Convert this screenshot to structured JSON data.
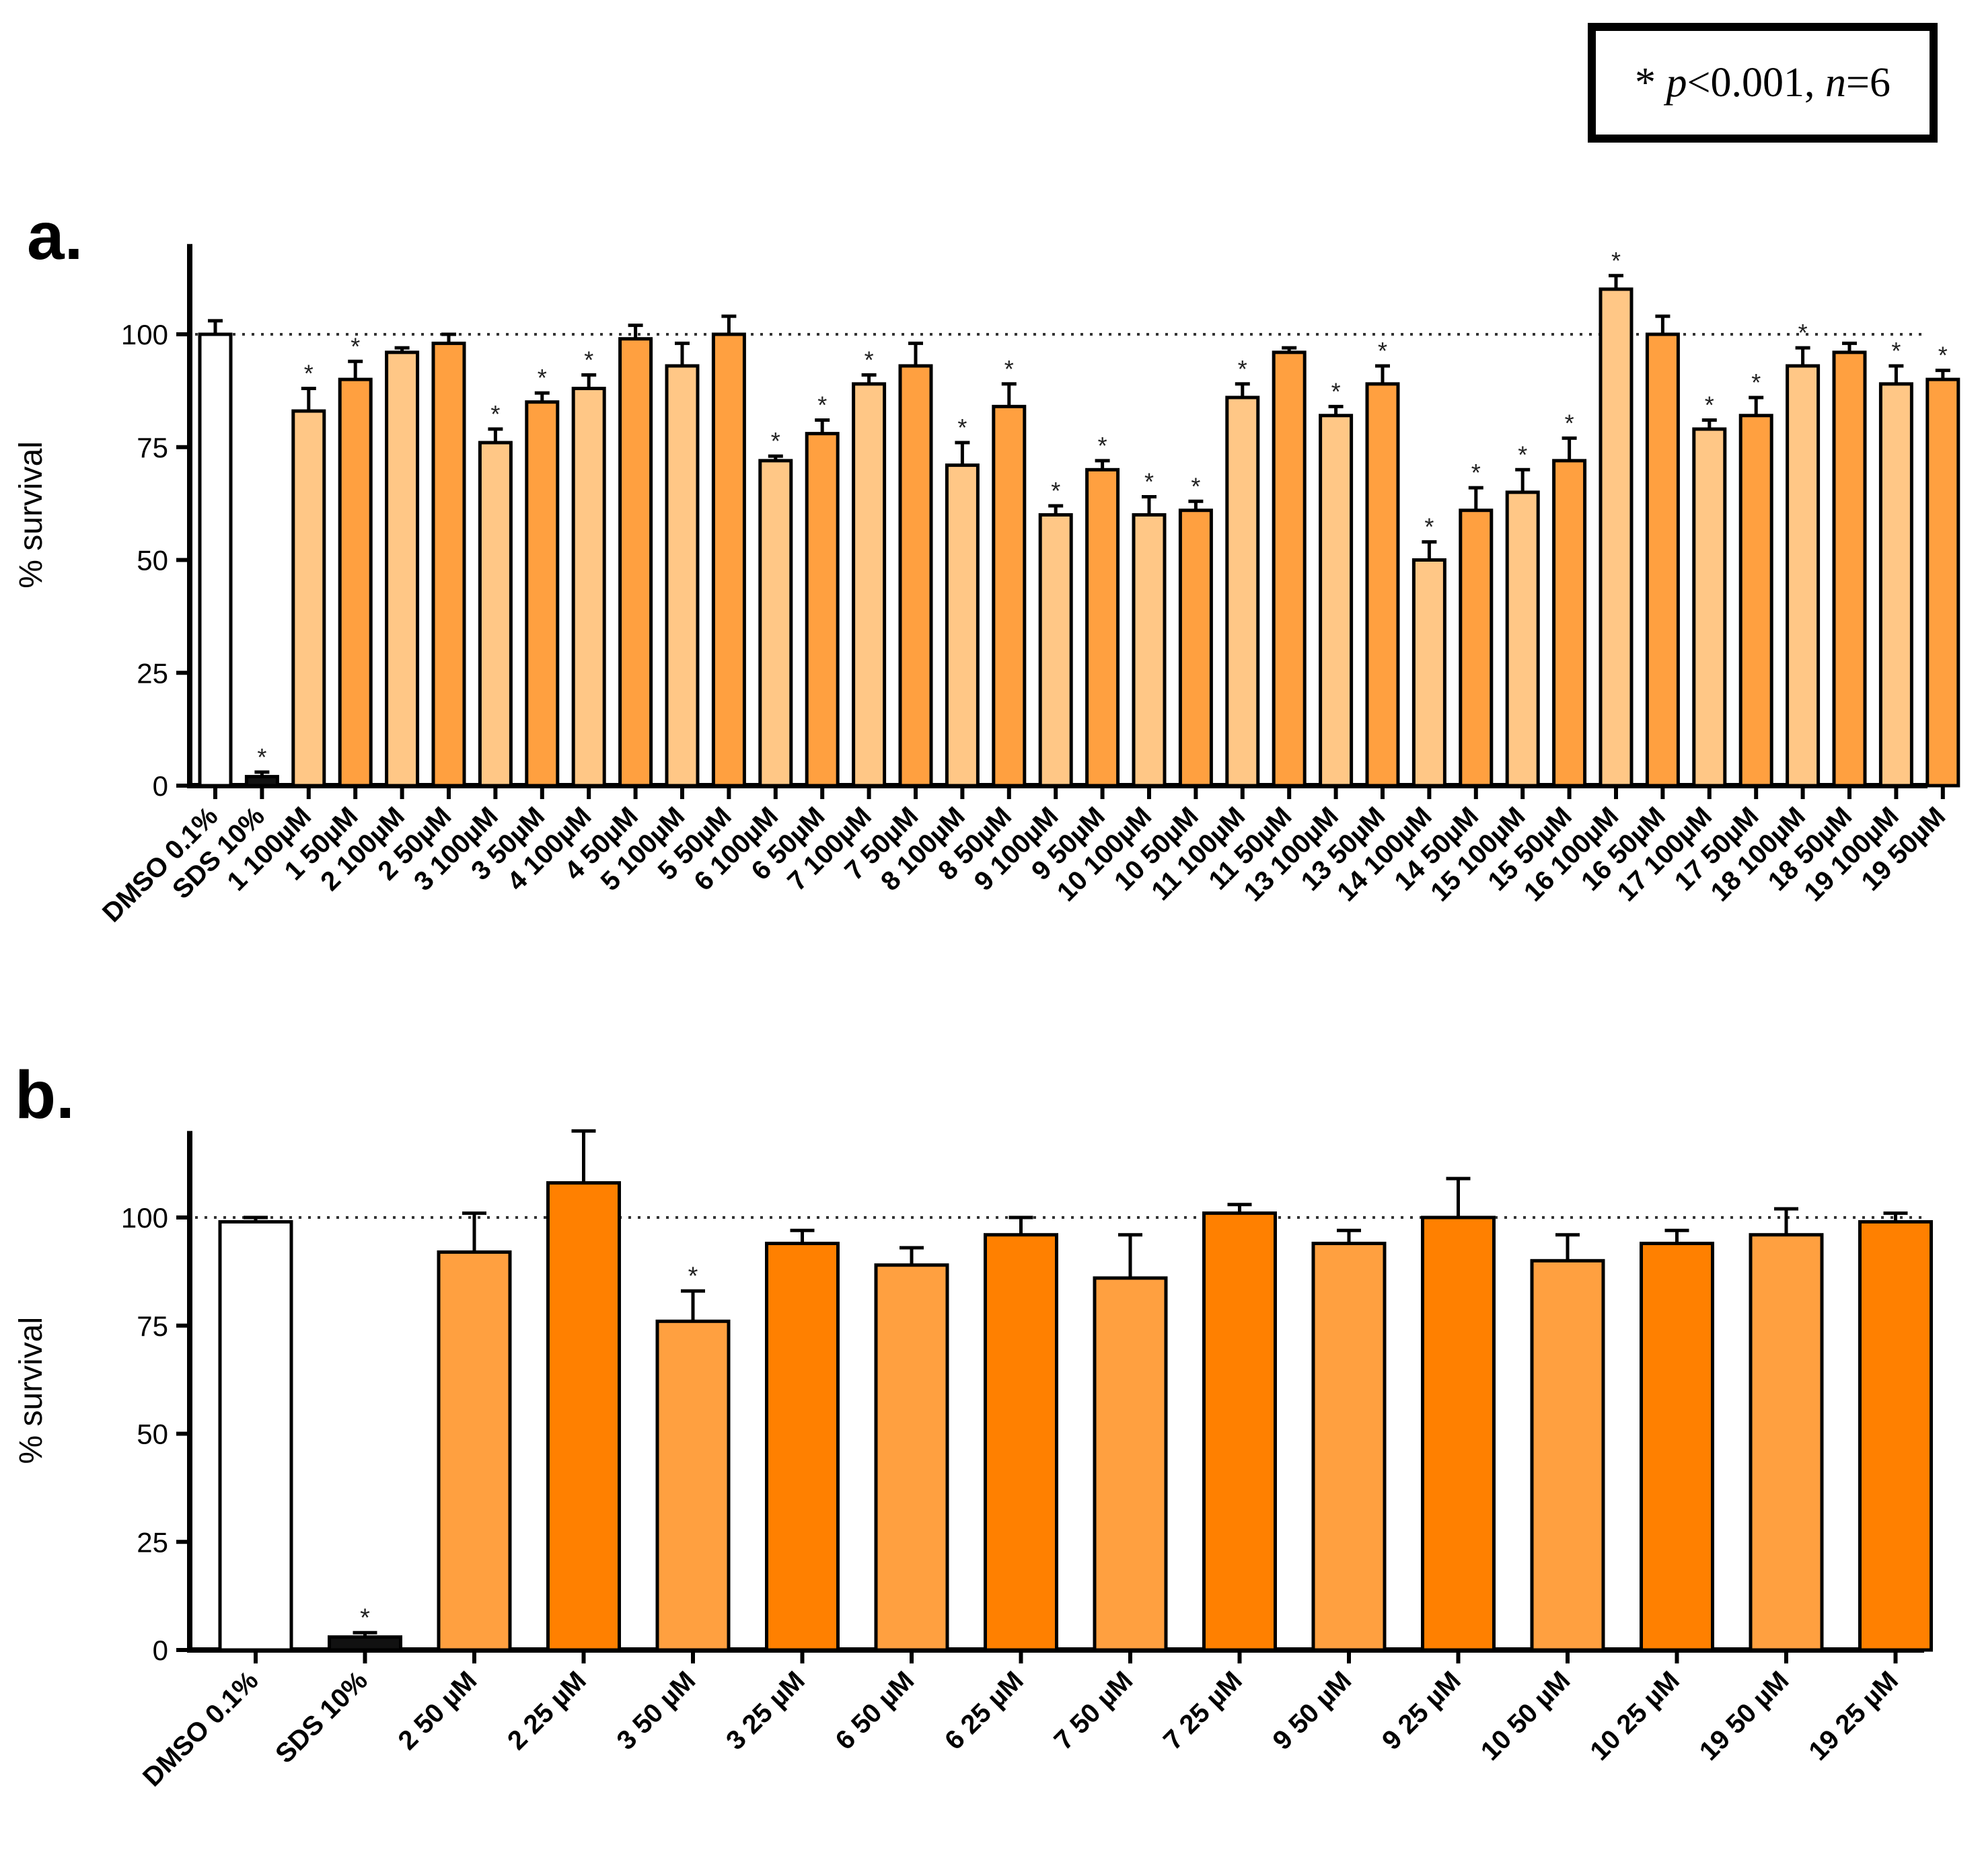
{
  "legend": {
    "star": "*",
    "p_label": "p",
    "p_value": "<0.001,",
    "n_label": "n",
    "n_value": "=6"
  },
  "colors": {
    "control_white": "#ffffff",
    "sds_black": "#111111",
    "light_orange": "#FFC786",
    "mid_orange": "#FFA040",
    "dark_orange": "#FF8000"
  },
  "chart_data": [
    {
      "panel": "a.",
      "type": "bar",
      "ylabel": "% survival",
      "ylim": [
        0,
        120
      ],
      "yticks": [
        0,
        25,
        50,
        75,
        100
      ],
      "reference_line": 100,
      "significance_marker": "*",
      "categories": [
        "DMSO 0.1%",
        "SDS 10%",
        "1 100µM",
        "1 50µM",
        "2 100µM",
        "2 50µM",
        "3 100µM",
        "3 50µM",
        "4 100µM",
        "4 50µM",
        "5 100µM",
        "5 50µM",
        "6 100µM",
        "6 50µM",
        "7 100µM",
        "7 50µM",
        "8 100µM",
        "8 50µM",
        "9 100µM",
        "9 50µM",
        "10 100µM",
        "10 50µM",
        "11 100µM",
        "11 50µM",
        "13 100µM",
        "13 50µM",
        "14 100µM",
        "14 50µM",
        "15 100µM",
        "15 50µM",
        "16 100µM",
        "16 50µM",
        "17 100µM",
        "17 50µM",
        "18 100µM",
        "18 50µM",
        "19 100µM",
        "19 50µM"
      ],
      "values": [
        100,
        2,
        83,
        90,
        96,
        98,
        76,
        85,
        88,
        99,
        93,
        100,
        72,
        78,
        89,
        93,
        71,
        84,
        60,
        70,
        60,
        61,
        86,
        96,
        82,
        89,
        50,
        61,
        65,
        72,
        110,
        100,
        79,
        82,
        93,
        96,
        89,
        90
      ],
      "errors": [
        3,
        1,
        5,
        4,
        1,
        2,
        3,
        2,
        3,
        3,
        5,
        4,
        1,
        3,
        2,
        5,
        5,
        5,
        2,
        2,
        4,
        2,
        3,
        1,
        2,
        4,
        4,
        5,
        5,
        5,
        3,
        4,
        2,
        4,
        4,
        2,
        4,
        2
      ],
      "significant": [
        false,
        true,
        true,
        true,
        false,
        false,
        true,
        true,
        true,
        false,
        false,
        false,
        true,
        true,
        true,
        false,
        true,
        true,
        true,
        true,
        true,
        true,
        true,
        false,
        true,
        true,
        true,
        true,
        true,
        true,
        true,
        false,
        true,
        true,
        true,
        false,
        true,
        true
      ],
      "fill": [
        "control_white",
        "sds_black",
        "light_orange",
        "mid_orange",
        "light_orange",
        "mid_orange",
        "light_orange",
        "mid_orange",
        "light_orange",
        "mid_orange",
        "light_orange",
        "mid_orange",
        "light_orange",
        "mid_orange",
        "light_orange",
        "mid_orange",
        "light_orange",
        "mid_orange",
        "light_orange",
        "mid_orange",
        "light_orange",
        "mid_orange",
        "light_orange",
        "mid_orange",
        "light_orange",
        "mid_orange",
        "light_orange",
        "mid_orange",
        "light_orange",
        "mid_orange",
        "light_orange",
        "mid_orange",
        "light_orange",
        "mid_orange",
        "light_orange",
        "mid_orange",
        "light_orange",
        "mid_orange"
      ]
    },
    {
      "panel": "b.",
      "type": "bar",
      "ylabel": "% survival",
      "ylim": [
        0,
        120
      ],
      "yticks": [
        0,
        25,
        50,
        75,
        100
      ],
      "reference_line": 100,
      "significance_marker": "*",
      "categories": [
        "DMSO 0.1%",
        "SDS 10%",
        "2 50 µM",
        "2 25 µM",
        "3 50 µM",
        "3 25 µM",
        "6 50 µM",
        "6 25 µM",
        "7 50 µM",
        "7 25 µM",
        "9 50 µM",
        "9 25 µM",
        "10 50 µM",
        "10 25 µM",
        "19 50 µM",
        "19 25 µM"
      ],
      "values": [
        99,
        3,
        92,
        108,
        76,
        94,
        89,
        96,
        86,
        101,
        94,
        100,
        90,
        94,
        96,
        99
      ],
      "errors": [
        1,
        1,
        9,
        12,
        7,
        3,
        4,
        4,
        10,
        2,
        3,
        9,
        6,
        3,
        6,
        2
      ],
      "significant": [
        false,
        true,
        false,
        false,
        true,
        false,
        false,
        false,
        false,
        false,
        false,
        false,
        false,
        false,
        false,
        false
      ],
      "fill": [
        "control_white",
        "sds_black",
        "mid_orange",
        "dark_orange",
        "mid_orange",
        "dark_orange",
        "mid_orange",
        "dark_orange",
        "mid_orange",
        "dark_orange",
        "mid_orange",
        "dark_orange",
        "mid_orange",
        "dark_orange",
        "mid_orange",
        "dark_orange"
      ]
    }
  ]
}
